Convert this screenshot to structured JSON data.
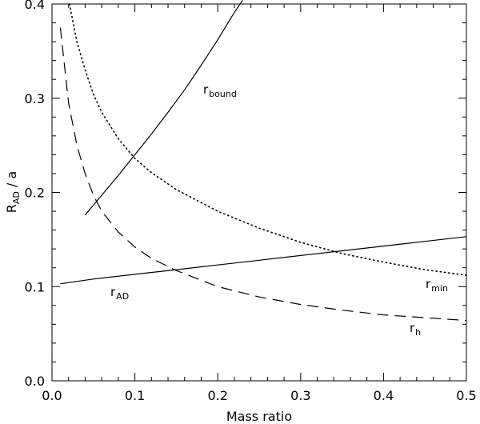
{
  "chart_data": {
    "type": "line",
    "title": "",
    "xlabel": "Mass ratio",
    "ylabel": {
      "main": "R",
      "sub": "AD",
      "rest": " / a"
    },
    "xlim": [
      0.0,
      0.5
    ],
    "ylim": [
      0.0,
      0.4
    ],
    "xticks": [
      "0.0",
      "0.1",
      "0.2",
      "0.3",
      "0.4",
      "0.5"
    ],
    "yticks": [
      "0.0",
      "0.1",
      "0.2",
      "0.3",
      "0.4"
    ],
    "grid": false,
    "legend": "none",
    "series": [
      {
        "label_main": "r",
        "label_sub": "bound",
        "style": "solid",
        "x": [
          0.04,
          0.06,
          0.08,
          0.1,
          0.12,
          0.14,
          0.16,
          0.18,
          0.2,
          0.22,
          0.23
        ],
        "y": [
          0.176,
          0.197,
          0.218,
          0.24,
          0.262,
          0.285,
          0.309,
          0.335,
          0.362,
          0.391,
          0.404
        ]
      },
      {
        "label_main": "r",
        "label_sub": "AD",
        "style": "solid",
        "x": [
          0.01,
          0.05,
          0.1,
          0.15,
          0.2,
          0.25,
          0.3,
          0.35,
          0.4,
          0.45,
          0.5
        ],
        "y": [
          0.103,
          0.108,
          0.113,
          0.118,
          0.123,
          0.128,
          0.133,
          0.138,
          0.143,
          0.148,
          0.153
        ]
      },
      {
        "label_main": "r",
        "label_sub": "min",
        "style": "dotted",
        "x": [
          0.021,
          0.03,
          0.04,
          0.05,
          0.06,
          0.08,
          0.1,
          0.12,
          0.15,
          0.2,
          0.25,
          0.3,
          0.35,
          0.4,
          0.45,
          0.5
        ],
        "y": [
          0.4,
          0.36,
          0.33,
          0.304,
          0.285,
          0.257,
          0.236,
          0.221,
          0.203,
          0.18,
          0.162,
          0.147,
          0.135,
          0.126,
          0.118,
          0.112
        ]
      },
      {
        "label_main": "r",
        "label_sub": "h",
        "style": "dashed",
        "x": [
          0.01,
          0.02,
          0.03,
          0.04,
          0.05,
          0.06,
          0.08,
          0.1,
          0.12,
          0.15,
          0.2,
          0.25,
          0.3,
          0.35,
          0.4,
          0.45,
          0.5
        ],
        "y": [
          0.375,
          0.295,
          0.25,
          0.22,
          0.197,
          0.18,
          0.158,
          0.142,
          0.13,
          0.117,
          0.1,
          0.089,
          0.081,
          0.075,
          0.07,
          0.067,
          0.064
        ]
      }
    ]
  }
}
